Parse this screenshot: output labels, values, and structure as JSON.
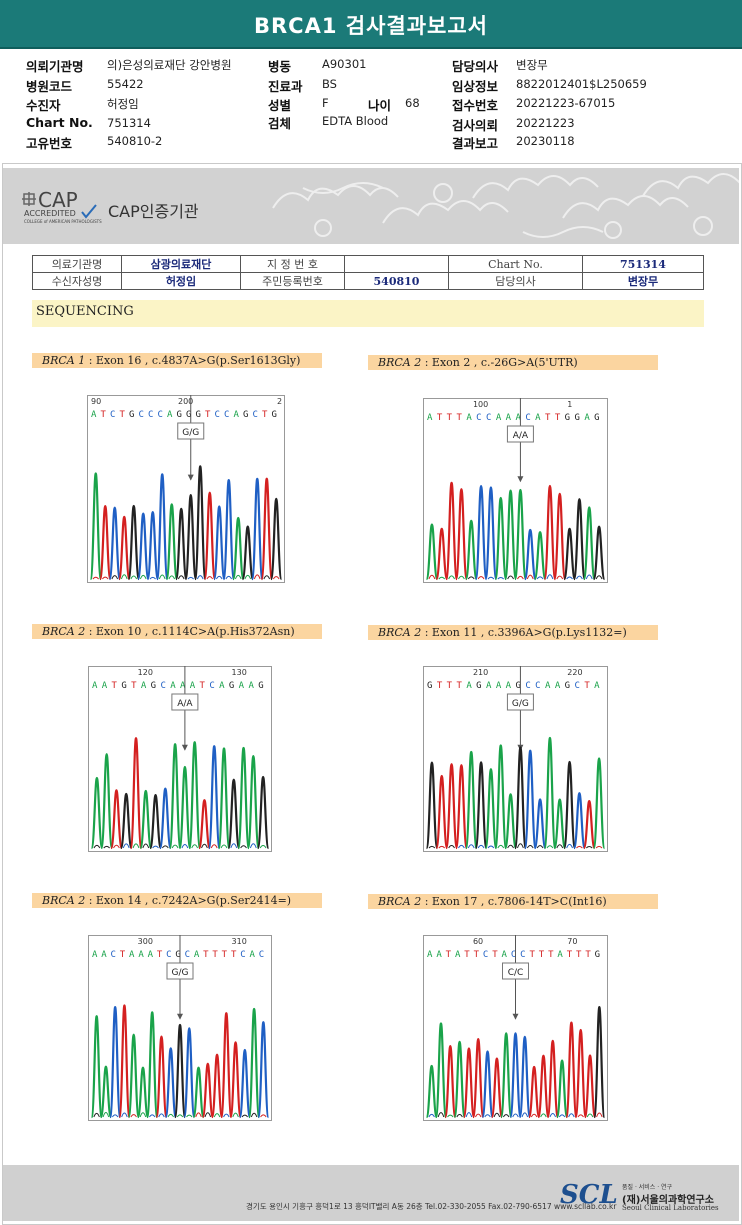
{
  "report": {
    "title": "BRCA1 검사결과보고서"
  },
  "patient_info": {
    "institution_label": "의뢰기관명",
    "institution": "의)은성의료재단 강안병원",
    "hospital_code_label": "병원코드",
    "hospital_code": "55422",
    "recipient_label": "수진자",
    "recipient": "허정임",
    "chart_label": "Chart No.",
    "chart": "751314",
    "unique_label": "고유번호",
    "unique": "540810-2",
    "ward_label": "병동",
    "ward": "A90301",
    "dept_label": "진료과",
    "dept": "BS",
    "sex_label": "성별",
    "sex": "F",
    "age_label": "나이",
    "age": "68",
    "specimen_label": "검체",
    "specimen": "EDTA Blood",
    "doctor_label": "담당의사",
    "doctor": "변장무",
    "clinical_label": "임상정보",
    "clinical": "8822012401$L250659",
    "receipt_label": "접수번호",
    "receipt": "20221223-67015",
    "request_label": "검사의뢰",
    "request": "20221223",
    "result_label": "결과보고",
    "result": "20230118"
  },
  "cap": {
    "logo_big": "CAP",
    "logo_accredited": "ACCREDITED",
    "logo_small": "COLLEGE of AMERICAN PATHOLOGISTS",
    "text": "CAP인증기관"
  },
  "info_table": {
    "r1": [
      "의료기관명",
      "삼광의료재단",
      "지 정 번 호",
      "",
      "Chart No.",
      "751314"
    ],
    "r2": [
      "수신자성명",
      "허정임",
      "주민등록번호",
      "540810",
      "담당의사",
      "변장무"
    ]
  },
  "sequencing_title": "SEQUENCING",
  "panels": [
    {
      "gene": "BRCA 1",
      "desc": " : Exon 16 , c.4837A>G(p.Ser1613Gly)",
      "ticks": [
        "90",
        "200",
        "2"
      ],
      "bases": "ATCTGCCCAGGGTCCAGCTG",
      "call": "G/G",
      "call_base": "G"
    },
    {
      "gene": "BRCA 2",
      "desc": " : Exon 2 , c.-26G>A(5'UTR)",
      "ticks": [
        "100",
        "1"
      ],
      "bases": "ATTTACCAAACATTGGAG",
      "call": "A/A",
      "call_base": "A"
    },
    {
      "gene": "BRCA 2",
      "desc": " : Exon 10 , c.1114C>A(p.His372Asn)",
      "ticks": [
        "120",
        "130"
      ],
      "bases": "AATGTAGCAAATCAGAAG",
      "call": "A/A",
      "call_base": "A"
    },
    {
      "gene": "BRCA 2",
      "desc": " : Exon 11 , c.3396A>G(p.Lys1132=)",
      "ticks": [
        "210",
        "220"
      ],
      "bases": "GTTTAGAAAGCCAAGCTA",
      "call": "G/G",
      "call_base": "G"
    },
    {
      "gene": "BRCA 2",
      "desc": " : Exon 14 , c.7242A>G(p.Ser2414=)",
      "ticks": [
        "300",
        "310"
      ],
      "bases": "AACTAAATCGCATTTTCAC",
      "call": "G/G",
      "call_base": "G"
    },
    {
      "gene": "BRCA 2",
      "desc": " : Exon 17 , c.7806-14T>C(Int16)",
      "ticks": [
        "60",
        "70"
      ],
      "bases": "AATATTCTACCTTTATTTG",
      "call": "C/C",
      "call_base": "C"
    }
  ],
  "base_colors": {
    "A": "#1aa34a",
    "C": "#1f5fc4",
    "G": "#222222",
    "T": "#d42020"
  },
  "footer": {
    "address": "경기도 용인시 기흥구 흥덕1로 13 흥덕IT밸리 A동 26층  Tel.02-330-2055  Fax.02-790-6517  www.scllab.co.kr",
    "logo": "SCL",
    "sub": "품질 · 서비스 · 연구",
    "name_kr": "(재)서울의과학연구소",
    "name_en": "Seoul Clinical Laboratories"
  }
}
